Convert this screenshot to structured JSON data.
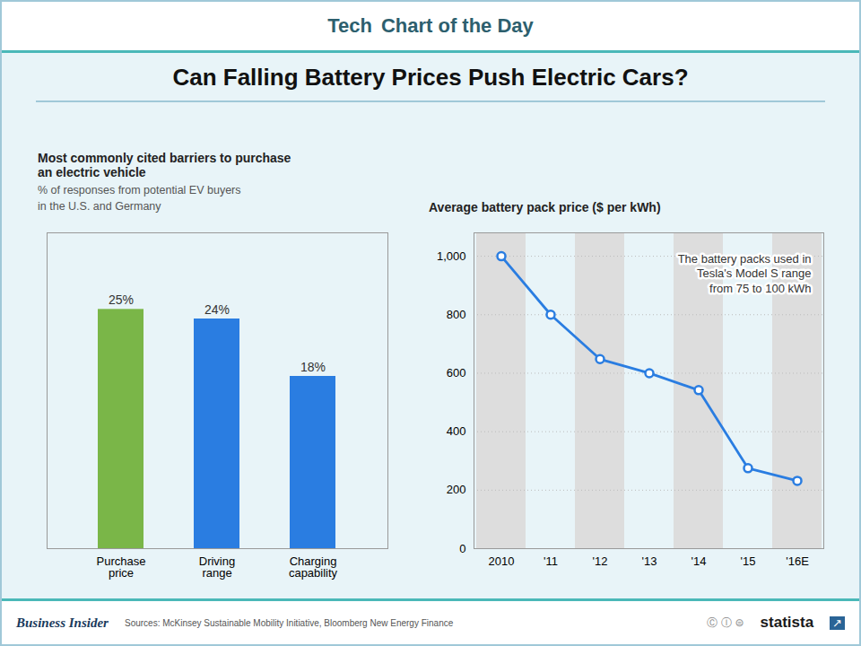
{
  "title": "Can Falling Battery Prices Push Electric Cars?",
  "annotations": {
    "header": [
      "Tech",
      "Chart of the Day"
    ],
    "footer": [
      "Business Insider",
      "Sources: McKinsey Sustainable Mobility Initiative, Bloomberg New Energy Finance",
      "Ⓒ Ⓘ ⊜",
      "statista",
      "↗"
    ]
  },
  "chart_data": [
    {
      "type": "bar",
      "title": "Most commonly cited barriers to purchase\nan electric vehicle",
      "subtitle": "% of responses from potential EV buyers\nin the U.S. and Germany",
      "categories": [
        "Purchase\nprice",
        "Driving\nrange",
        "Charging\ncapability"
      ],
      "values": [
        25,
        24,
        18
      ],
      "value_labels": [
        "25%",
        "24%",
        "18%"
      ],
      "colors": [
        "#7ab648",
        "#2a7de1",
        "#2a7de1"
      ],
      "ylim": [
        0,
        33
      ],
      "data_labels": true,
      "tick_labels": "x",
      "grid": false
    },
    {
      "type": "line",
      "title": "Average battery pack price ($ per kWh)",
      "annotation": "The battery packs used in\nTesla's Model S range\nfrom 75 to 100 kWh",
      "categories": [
        "2010",
        "'11",
        "'12",
        "'13",
        "'14",
        "'15",
        "'16E"
      ],
      "values": [
        1000,
        800,
        648,
        600,
        542,
        275,
        232
      ],
      "color": "#2a7de1",
      "marker": "circle",
      "ylim": [
        0,
        1080
      ],
      "yticks": [
        0,
        200,
        400,
        600,
        800,
        {
          "value": 1000,
          "label": "1,000"
        }
      ],
      "grid": true
    }
  ]
}
